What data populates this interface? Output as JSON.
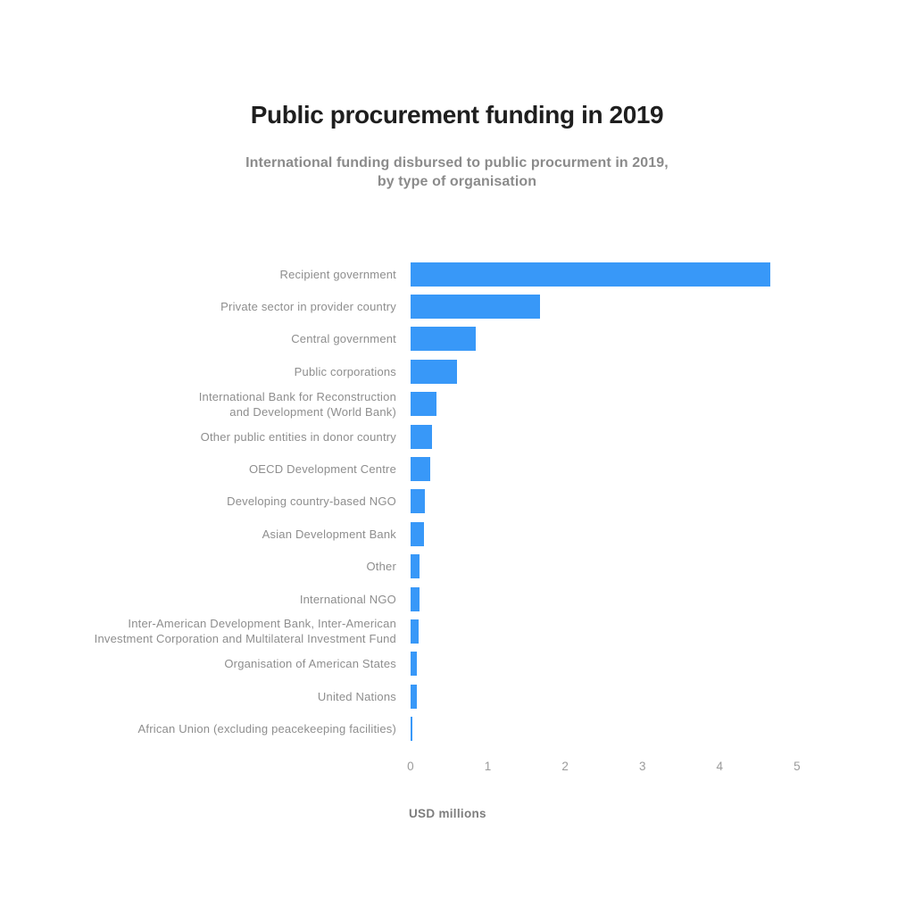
{
  "chart_data": {
    "type": "bar",
    "orientation": "horizontal",
    "title": "Public procurement funding in 2019",
    "subtitle": "International funding disbursed to public procurment in 2019,\nby type of organisation",
    "categories": [
      "Recipient government",
      "Private sector in provider country",
      "Central government",
      "Public corporations",
      "International Bank for Reconstruction\nand Development (World Bank)",
      "Other public entities in donor country",
      "OECD Development Centre",
      "Developing country-based NGO",
      "Asian Development Bank",
      "Other",
      "International NGO",
      "Inter-American Development Bank, Inter-American\nInvestment Corporation and Multilateral Investment Fund",
      "Organisation of American States",
      "United Nations",
      "African Union (excluding peacekeeping facilities)"
    ],
    "values": [
      4.65,
      1.68,
      0.84,
      0.6,
      0.34,
      0.28,
      0.25,
      0.18,
      0.17,
      0.12,
      0.11,
      0.1,
      0.08,
      0.08,
      0.02
    ],
    "xlabel": "USD millions",
    "xlim": [
      0,
      5
    ],
    "x_ticks": [
      0,
      1,
      2,
      3,
      4,
      5
    ],
    "bar_color": "#3898f8",
    "grid": false,
    "legend_position": "none",
    "colors": {
      "title": "#1e1e1e",
      "subtitle": "#8b8b8b",
      "category_label": "#8e8e8e",
      "tick_label": "#9b9b9b",
      "axis_title": "#7d7d7d",
      "background": "#ffffff"
    }
  }
}
